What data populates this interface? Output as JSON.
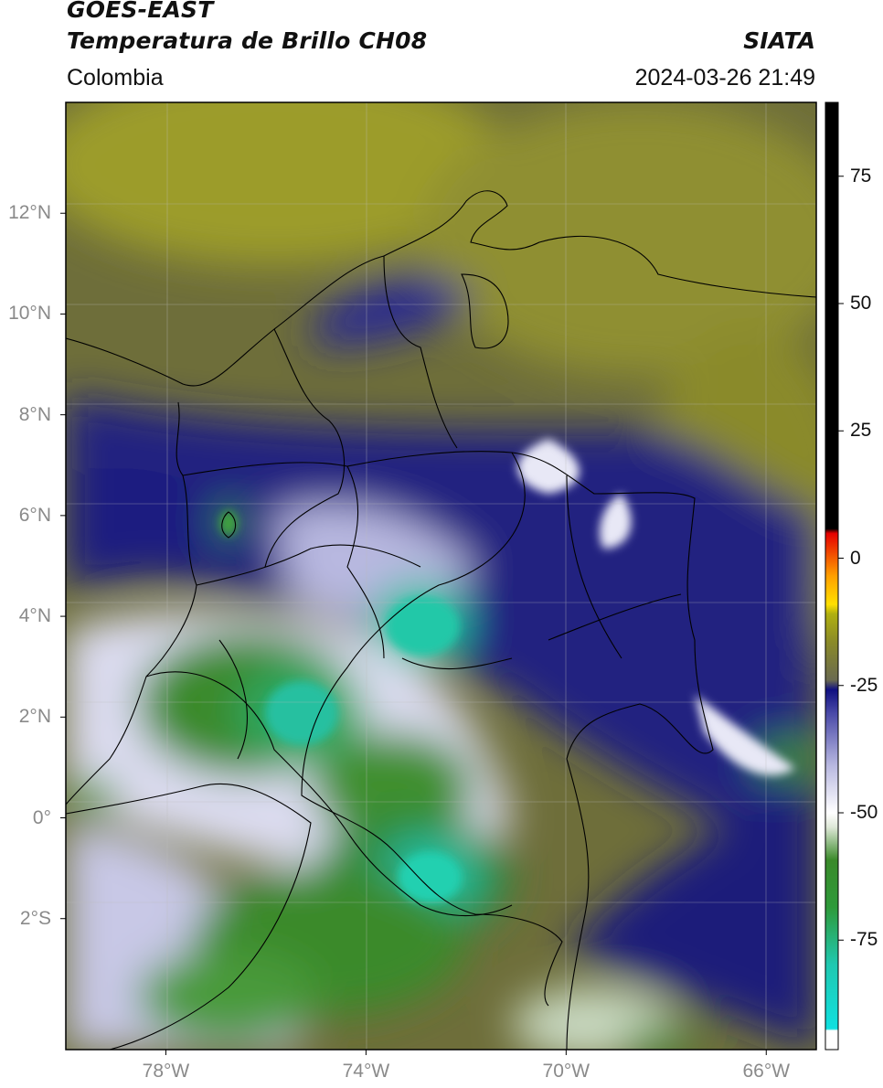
{
  "header": {
    "satellite": "GOES-EAST",
    "product": "Temperatura de Brillo CH08",
    "brand": "SIATA",
    "region": "Colombia",
    "timestamp": "2024-03-26 21:49"
  },
  "map": {
    "lat_ticks": [
      {
        "label": "12°N",
        "value": 12
      },
      {
        "label": "10°N",
        "value": 10
      },
      {
        "label": "8°N",
        "value": 8
      },
      {
        "label": "6°N",
        "value": 6
      },
      {
        "label": "4°N",
        "value": 4
      },
      {
        "label": "2°N",
        "value": 2
      },
      {
        "label": "0°",
        "value": 0
      },
      {
        "label": "2°S",
        "value": -2
      }
    ],
    "lon_ticks": [
      {
        "label": "78°W",
        "value": -78
      },
      {
        "label": "74°W",
        "value": -74
      },
      {
        "label": "70°W",
        "value": -70
      },
      {
        "label": "66°W",
        "value": -66
      }
    ],
    "lon_range": [
      -80,
      -65
    ],
    "lat_range": [
      -4.6,
      14.2
    ]
  },
  "colorbar": {
    "ticks": [
      {
        "label": "75",
        "value": 75
      },
      {
        "label": "50",
        "value": 50
      },
      {
        "label": "25",
        "value": 25
      },
      {
        "label": "0",
        "value": 0
      },
      {
        "label": "-25",
        "value": -25
      },
      {
        "label": "-50",
        "value": -50
      },
      {
        "label": "-75",
        "value": -75
      }
    ],
    "range": [
      -96.5,
      89.5
    ],
    "colors": {
      "warm": "#000000",
      "hot": "#e50000",
      "yellow": "#ffe000",
      "olive": "#8a8a28",
      "navy": "#1a1a7a",
      "white": "#ffffff",
      "green": "#3a8a2a",
      "cyan": "#20d0c0"
    }
  }
}
